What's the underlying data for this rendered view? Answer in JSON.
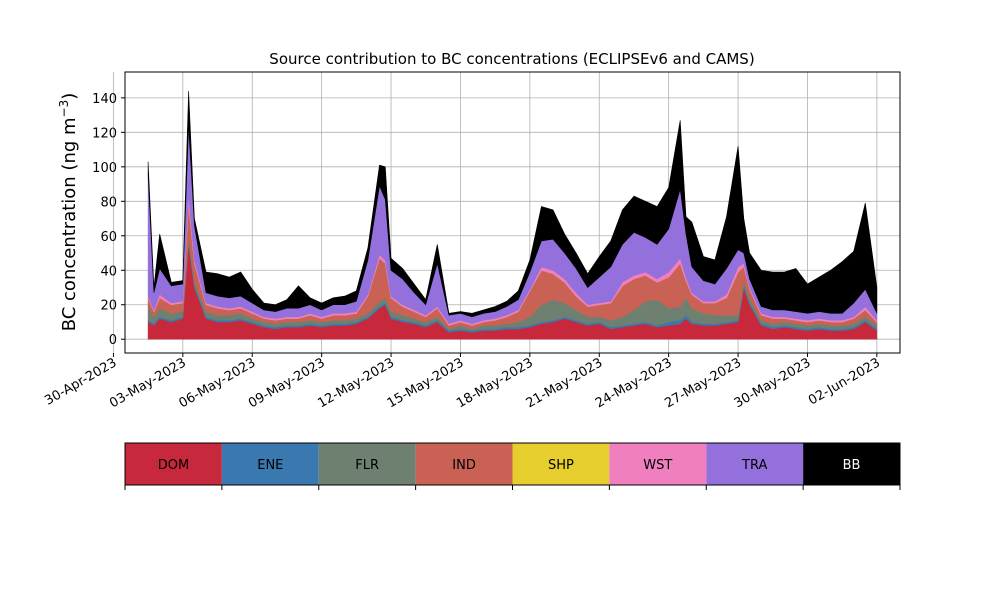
{
  "chart_data": {
    "type": "area",
    "title": "Source contribution to BC concentrations (ECLIPSEv6 and CAMS)",
    "xlabel": "",
    "ylabel": "BC concentration (ng m",
    "ylabel_superscript": "−3",
    "ylabel_suffix": ")",
    "stacked": true,
    "grid": true,
    "xlim": [
      "2023-04-30T12:00",
      "2023-06-03T00:00"
    ],
    "ylim": [
      -8,
      155
    ],
    "yticks": [
      0,
      20,
      40,
      60,
      80,
      100,
      120,
      140
    ],
    "xtick_labels": [
      "30-Apr-2023",
      "03-May-2023",
      "06-May-2023",
      "09-May-2023",
      "12-May-2023",
      "15-May-2023",
      "18-May-2023",
      "21-May-2023",
      "24-May-2023",
      "27-May-2023",
      "30-May-2023",
      "02-Jun-2023"
    ],
    "x": [
      "2023-05-01T12:00",
      "2023-05-01T18:00",
      "2023-05-02T00:00",
      "2023-05-02T12:00",
      "2023-05-03T00:00",
      "2023-05-03T06:00",
      "2023-05-03T12:00",
      "2023-05-04T00:00",
      "2023-05-04T12:00",
      "2023-05-05T00:00",
      "2023-05-05T12:00",
      "2023-05-06T00:00",
      "2023-05-06T12:00",
      "2023-05-07T00:00",
      "2023-05-07T12:00",
      "2023-05-08T00:00",
      "2023-05-08T12:00",
      "2023-05-09T00:00",
      "2023-05-09T12:00",
      "2023-05-10T00:00",
      "2023-05-10T12:00",
      "2023-05-11T00:00",
      "2023-05-11T12:00",
      "2023-05-11T18:00",
      "2023-05-12T00:00",
      "2023-05-12T12:00",
      "2023-05-13T00:00",
      "2023-05-13T12:00",
      "2023-05-14T00:00",
      "2023-05-14T12:00",
      "2023-05-15T00:00",
      "2023-05-15T12:00",
      "2023-05-16T00:00",
      "2023-05-16T12:00",
      "2023-05-17T00:00",
      "2023-05-17T12:00",
      "2023-05-18T00:00",
      "2023-05-18T12:00",
      "2023-05-19T00:00",
      "2023-05-19T12:00",
      "2023-05-20T00:00",
      "2023-05-20T12:00",
      "2023-05-21T00:00",
      "2023-05-21T12:00",
      "2023-05-22T00:00",
      "2023-05-22T12:00",
      "2023-05-23T00:00",
      "2023-05-23T12:00",
      "2023-05-24T00:00",
      "2023-05-24T12:00",
      "2023-05-24T18:00",
      "2023-05-25T00:00",
      "2023-05-25T12:00",
      "2023-05-26T00:00",
      "2023-05-26T12:00",
      "2023-05-27T00:00",
      "2023-05-27T06:00",
      "2023-05-27T12:00",
      "2023-05-28T00:00",
      "2023-05-28T12:00",
      "2023-05-29T00:00",
      "2023-05-29T12:00",
      "2023-05-30T00:00",
      "2023-05-30T12:00",
      "2023-05-31T00:00",
      "2023-05-31T12:00",
      "2023-06-01T00:00",
      "2023-06-01T12:00",
      "2023-06-02T00:00"
    ],
    "series": [
      {
        "name": "DOM",
        "color": "#c8283b",
        "values": [
          10,
          8,
          12,
          10,
          12,
          55,
          30,
          12,
          10,
          10,
          11,
          9,
          7,
          6,
          7,
          7,
          8,
          7,
          8,
          8,
          9,
          12,
          18,
          20,
          12,
          10,
          9,
          7,
          10,
          4,
          5,
          4,
          5,
          5,
          6,
          6,
          7,
          9,
          10,
          12,
          10,
          8,
          9,
          6,
          7,
          8,
          9,
          7,
          8,
          9,
          12,
          9,
          8,
          8,
          9,
          10,
          30,
          20,
          8,
          6,
          7,
          6,
          5,
          6,
          5,
          5,
          6,
          10,
          5
        ]
      },
      {
        "name": "ENE",
        "color": "#3a78b0",
        "values": [
          1,
          1,
          1,
          1,
          1,
          1,
          1,
          1,
          1,
          1,
          1,
          1,
          1,
          1,
          1,
          1,
          1,
          1,
          1,
          1,
          1,
          1,
          1,
          1,
          1,
          1,
          1,
          1,
          1,
          1,
          1,
          1,
          1,
          1,
          1,
          1,
          1,
          1,
          1,
          1,
          1,
          1,
          1,
          1,
          1,
          1,
          1,
          1,
          2,
          2,
          2,
          1,
          1,
          1,
          1,
          1,
          1,
          1,
          1,
          1,
          1,
          1,
          1,
          1,
          1,
          1,
          1,
          1,
          1
        ]
      },
      {
        "name": "FLR",
        "color": "#6e8070",
        "values": [
          8,
          4,
          5,
          4,
          3,
          3,
          3,
          3,
          3,
          3,
          3,
          2,
          2,
          2,
          2,
          2,
          2,
          2,
          2,
          2,
          2,
          2,
          3,
          3,
          3,
          3,
          2,
          2,
          2,
          1,
          2,
          1,
          2,
          2,
          2,
          3,
          5,
          10,
          12,
          8,
          6,
          4,
          3,
          4,
          5,
          8,
          12,
          15,
          8,
          8,
          10,
          8,
          6,
          5,
          4,
          3,
          3,
          3,
          2,
          2,
          2,
          2,
          2,
          2,
          2,
          2,
          2,
          2,
          2
        ]
      },
      {
        "name": "IND",
        "color": "#c96254",
        "values": [
          5,
          3,
          6,
          5,
          5,
          20,
          10,
          4,
          4,
          3,
          3,
          3,
          2,
          2,
          2,
          2,
          3,
          2,
          3,
          3,
          3,
          10,
          25,
          20,
          8,
          5,
          4,
          3,
          5,
          2,
          2,
          2,
          2,
          3,
          4,
          6,
          15,
          20,
          15,
          12,
          8,
          6,
          7,
          10,
          18,
          18,
          15,
          10,
          18,
          25,
          10,
          8,
          6,
          7,
          10,
          25,
          8,
          5,
          3,
          3,
          2,
          2,
          2,
          2,
          2,
          2,
          3,
          4,
          2
        ]
      },
      {
        "name": "SHP",
        "color": "#e5ce2d",
        "values": [
          0,
          0,
          0,
          0,
          0,
          0,
          0,
          0,
          0,
          0,
          0,
          0,
          0,
          0,
          0,
          0,
          0,
          0,
          0,
          0,
          0,
          0,
          0,
          0,
          0,
          0,
          0,
          0,
          0,
          0,
          0,
          0,
          0,
          0,
          0,
          0,
          0,
          0,
          0,
          0,
          0,
          0,
          0,
          0,
          0,
          0,
          0,
          0,
          0,
          0,
          0,
          0,
          0,
          0,
          0,
          0,
          0,
          0,
          0,
          0,
          0,
          0,
          0,
          0,
          0,
          0,
          0,
          0,
          0
        ]
      },
      {
        "name": "WST",
        "color": "#f07fbf",
        "values": [
          1,
          1,
          2,
          1,
          1,
          5,
          2,
          1,
          1,
          1,
          1,
          1,
          1,
          1,
          1,
          1,
          1,
          1,
          1,
          1,
          1,
          1,
          2,
          2,
          1,
          1,
          1,
          1,
          1,
          1,
          1,
          1,
          1,
          1,
          1,
          1,
          1,
          2,
          2,
          2,
          2,
          1,
          1,
          1,
          2,
          2,
          2,
          2,
          3,
          3,
          2,
          1,
          1,
          1,
          2,
          3,
          2,
          1,
          1,
          1,
          1,
          1,
          1,
          1,
          1,
          1,
          1,
          2,
          1
        ]
      },
      {
        "name": "TRA",
        "color": "#9370dc",
        "values": [
          70,
          10,
          15,
          10,
          10,
          40,
          20,
          6,
          6,
          6,
          6,
          5,
          4,
          4,
          5,
          5,
          5,
          4,
          5,
          5,
          6,
          20,
          40,
          35,
          15,
          15,
          10,
          6,
          25,
          5,
          4,
          4,
          4,
          4,
          5,
          6,
          10,
          15,
          18,
          15,
          14,
          10,
          15,
          20,
          22,
          25,
          20,
          20,
          25,
          40,
          25,
          15,
          12,
          10,
          15,
          10,
          6,
          5,
          4,
          4,
          4,
          4,
          4,
          4,
          4,
          4,
          8,
          10,
          4
        ]
      },
      {
        "name": "BB",
        "color": "#000000",
        "values": [
          8,
          3,
          20,
          2,
          2,
          20,
          4,
          12,
          13,
          12,
          14,
          8,
          4,
          4,
          5,
          13,
          4,
          4,
          4,
          5,
          6,
          7,
          12,
          19,
          7,
          6,
          5,
          3,
          11,
          1,
          1,
          2,
          2,
          3,
          3,
          5,
          7,
          20,
          17,
          11,
          9,
          8,
          12,
          15,
          20,
          21,
          21,
          22,
          24,
          40,
          10,
          26,
          14,
          14,
          30,
          60,
          20,
          15,
          21,
          22,
          22,
          25,
          17,
          20,
          25,
          30,
          30,
          50,
          15
        ]
      }
    ]
  },
  "legend_labels": [
    "DOM",
    "ENE",
    "FLR",
    "IND",
    "SHP",
    "WST",
    "TRA",
    "BB"
  ]
}
